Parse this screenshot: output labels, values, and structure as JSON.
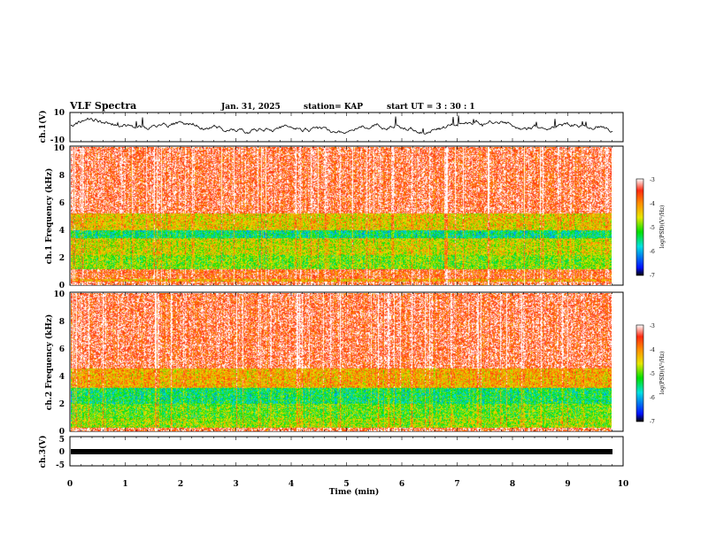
{
  "header": {
    "title": "VLF Spectra",
    "date": "Jan. 31, 2025",
    "station": "station= KAP",
    "start": "start  UT  =  3 : 30 : 1"
  },
  "colors": {
    "red": "#ff2a10",
    "orange": "#ff8c00",
    "yellow": "#e6e600",
    "green": "#00e000",
    "cyan": "#00e0e0",
    "blue": "#0030ff",
    "black": "#000000"
  },
  "chart_data": [
    {
      "type": "line",
      "id": "ch1-waveform",
      "ylabel": "ch.1(V)",
      "ylim": [
        -10,
        10
      ],
      "yticks": [
        10,
        -10
      ],
      "xlim": [
        0,
        10
      ],
      "approx_range": [
        -6,
        5
      ]
    },
    {
      "type": "heatmap",
      "id": "ch1-spectrogram",
      "ylabel": "ch.1 Frequency  (kHz)",
      "ylim": [
        0,
        10
      ],
      "yticks": [
        0,
        2,
        4,
        6,
        8,
        10
      ],
      "xlim": [
        0,
        9.8
      ],
      "colorbar": {
        "label": "log(PSD)(V²/Hz)",
        "range": [
          -7,
          -3
        ],
        "ticks": [
          -3,
          -4,
          -5,
          -6,
          -7
        ]
      },
      "bands": [
        {
          "from": 0,
          "to": 0.3,
          "level": -3.4
        },
        {
          "from": 0.3,
          "to": 0.5,
          "level": -4.2
        },
        {
          "from": 0.5,
          "to": 1.2,
          "level": -3.6
        },
        {
          "from": 1.2,
          "to": 2.2,
          "level": -4.9
        },
        {
          "from": 2.2,
          "to": 3.4,
          "level": -4.6
        },
        {
          "from": 3.4,
          "to": 4.0,
          "level": -5.5
        },
        {
          "from": 4.0,
          "to": 5.2,
          "level": -4.4
        },
        {
          "from": 5.2,
          "to": 10,
          "level": -3.4
        }
      ]
    },
    {
      "type": "heatmap",
      "id": "ch2-spectrogram",
      "ylabel": "ch.2 Frequency  (kHz)",
      "ylim": [
        0,
        10
      ],
      "yticks": [
        0,
        2,
        4,
        6,
        8,
        10
      ],
      "xlim": [
        0,
        9.8
      ],
      "colorbar": {
        "label": "log(PSD)(V²/Hz)",
        "range": [
          -7,
          -3
        ],
        "ticks": [
          -3,
          -4,
          -5,
          -6,
          -7
        ]
      },
      "bands": [
        {
          "from": 0,
          "to": 0.3,
          "level": -3.4
        },
        {
          "from": 0.3,
          "to": 1.0,
          "level": -4.8
        },
        {
          "from": 1.0,
          "to": 2.0,
          "level": -5.0
        },
        {
          "from": 2.0,
          "to": 3.2,
          "level": -5.4
        },
        {
          "from": 3.2,
          "to": 4.6,
          "level": -4.2
        },
        {
          "from": 4.6,
          "to": 10,
          "level": -3.4
        }
      ]
    },
    {
      "type": "line",
      "id": "ch3-waveform",
      "ylabel": "ch.3(V)",
      "ylim": [
        -5,
        5
      ],
      "yticks": [
        5,
        0,
        -5
      ],
      "xlim": [
        0,
        10
      ],
      "approx_range": [
        -0.3,
        0.3
      ]
    }
  ],
  "xaxis": {
    "label": "Time  (min)",
    "ticks": [
      "0",
      "1",
      "2",
      "3",
      "4",
      "5",
      "6",
      "7",
      "8",
      "9",
      "10"
    ]
  }
}
